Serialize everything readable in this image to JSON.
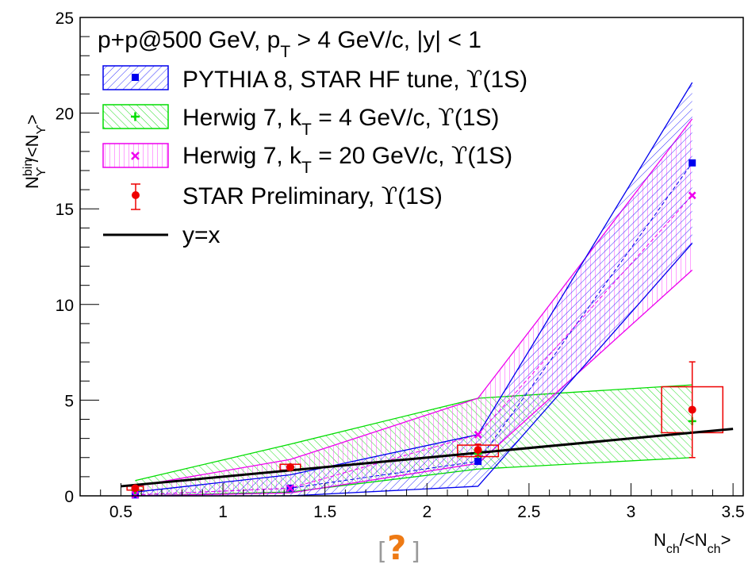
{
  "chart_data": {
    "type": "scatter",
    "xlim": [
      0.3,
      3.55
    ],
    "ylim": [
      0,
      25
    ],
    "x_ticks": [
      "0.5",
      "1",
      "1.5",
      "2",
      "2.5",
      "3",
      "3.5"
    ],
    "x_tick_values": [
      0.5,
      1,
      1.5,
      2,
      2.5,
      3,
      3.5
    ],
    "y_ticks": [
      "0",
      "5",
      "10",
      "15",
      "20",
      "25"
    ],
    "y_tick_values": [
      0,
      5,
      10,
      15,
      20,
      25
    ],
    "xlabel": {
      "main": "N",
      "sub": "ch",
      "rest": "/<N",
      "sub2": "ch",
      "end": ">"
    },
    "ylabel": {
      "main": "N",
      "sup": "bin",
      "sub": "ϒ",
      "rest": "/<N",
      "sub2": "ϒ",
      "end": ">"
    },
    "legend_header": [
      "p+p@500 GeV, p",
      "T",
      " > 4 GeV/c, |y| < 1"
    ],
    "legend": [
      {
        "label": [
          "PYTHIA 8, STAR HF tune, ",
          "ϒ",
          "(1S)"
        ]
      },
      {
        "label": [
          "Herwig 7, k",
          "T",
          " = 4 GeV/c, ",
          "ϒ",
          "(1S)"
        ]
      },
      {
        "label": [
          "Herwig 7, k",
          "T",
          " = 20 GeV/c, ",
          "ϒ",
          "(1S)"
        ]
      },
      {
        "label": [
          "STAR Preliminary, ",
          "ϒ",
          "(1S)"
        ]
      },
      {
        "label": [
          "y=x"
        ]
      }
    ],
    "series": [
      {
        "color": "#0000ee",
        "marker": "square",
        "x": [
          0.57,
          1.33,
          2.25,
          3.3
        ],
        "y": [
          0.05,
          0.4,
          1.8,
          17.4
        ],
        "band_low": [
          0,
          0,
          0.5,
          13.2
        ],
        "band_high": [
          0.2,
          1.1,
          3.2,
          21.6
        ]
      },
      {
        "color": "#00dd00",
        "marker": "plus",
        "x": [
          0.57,
          1.33,
          2.25,
          3.3
        ],
        "y": [
          0.3,
          1.5,
          2.2,
          3.9
        ],
        "band_low": [
          0,
          0.2,
          1.4,
          2.0
        ],
        "band_high": [
          0.8,
          2.7,
          5.1,
          5.8
        ]
      },
      {
        "color": "#ee00ee",
        "marker": "x",
        "x": [
          0.57,
          1.33,
          2.25,
          3.3
        ],
        "y": [
          0.05,
          0.4,
          3.2,
          15.7
        ],
        "band_low": [
          0,
          0.15,
          1.7,
          11.8
        ],
        "band_high": [
          0.5,
          1.9,
          5.1,
          19.7
        ]
      },
      {
        "color": "#ee0000",
        "marker": "circle",
        "x": [
          0.57,
          1.33,
          2.25,
          3.3
        ],
        "y": [
          0.4,
          1.5,
          2.4,
          4.5
        ],
        "yerr_low": [
          0.1,
          0.15,
          0.3,
          2.5
        ],
        "yerr_high": [
          0.1,
          0.15,
          0.3,
          2.5
        ],
        "sys_x_halfwidth": [
          0.04,
          0.05,
          0.1,
          0.15
        ],
        "sys_low": [
          0.3,
          1.35,
          2.05,
          3.3
        ],
        "sys_high": [
          0.5,
          1.65,
          2.65,
          5.7
        ]
      },
      {
        "color": "#000000",
        "line": "y=x",
        "x": [
          0.5,
          3.5
        ],
        "y": [
          0.5,
          3.5
        ]
      }
    ]
  },
  "footer_icon": "question-mark-icon",
  "footer_symbol": "?",
  "footer_brackets": [
    "[",
    "]"
  ]
}
